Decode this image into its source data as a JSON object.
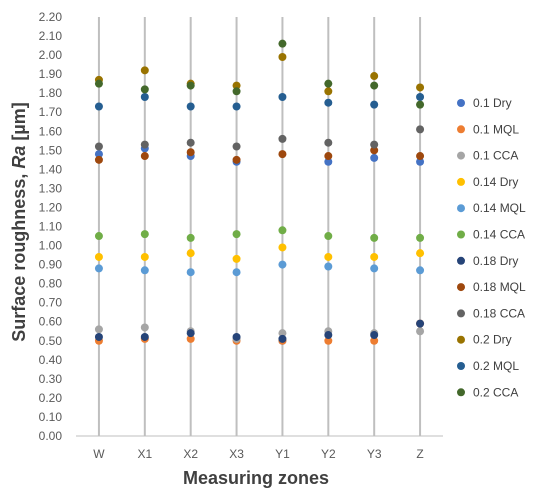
{
  "chart_data": {
    "type": "scatter",
    "title": "",
    "xlabel": "Measuring zones",
    "ylabel_main": "Surface roughness, ",
    "ylabel_italic": "Ra",
    "ylabel_unit": " [µm]",
    "categories": [
      "W",
      "X1",
      "X2",
      "X3",
      "Y1",
      "Y2",
      "Y3",
      "Z"
    ],
    "ylim": [
      0,
      2.2
    ],
    "ytick_step": 0.1,
    "yticks": [
      "0.00",
      "0.10",
      "0.20",
      "0.30",
      "0.40",
      "0.50",
      "0.60",
      "0.70",
      "0.80",
      "0.90",
      "1.00",
      "1.10",
      "1.20",
      "1.30",
      "1.40",
      "1.50",
      "1.60",
      "1.70",
      "1.80",
      "1.90",
      "2.00",
      "2.10",
      "2.20"
    ],
    "grid": "vertical",
    "legend_position": "right",
    "series": [
      {
        "name": "0.1 Dry",
        "color": "#4472C4",
        "values": [
          1.48,
          1.51,
          1.47,
          1.44,
          0.5,
          1.44,
          1.46,
          1.44
        ]
      },
      {
        "name": "0.1 MQL",
        "color": "#ED7D31",
        "values": [
          0.5,
          0.51,
          0.51,
          0.5,
          0.5,
          0.5,
          0.5,
          0.59
        ]
      },
      {
        "name": "0.1 CCA",
        "color": "#A5A5A5",
        "values": [
          0.56,
          0.57,
          0.55,
          0.51,
          0.54,
          0.55,
          0.54,
          0.55
        ]
      },
      {
        "name": "0.14 Dry",
        "color": "#FFC000",
        "values": [
          0.94,
          0.94,
          0.96,
          0.93,
          0.99,
          0.94,
          0.94,
          0.96
        ]
      },
      {
        "name": "0.14 MQL",
        "color": "#5B9BD5",
        "values": [
          0.88,
          0.87,
          0.86,
          0.86,
          0.9,
          0.89,
          0.88,
          0.87
        ]
      },
      {
        "name": "0.14 CCA",
        "color": "#70AD47",
        "values": [
          1.05,
          1.06,
          1.04,
          1.06,
          1.08,
          1.05,
          1.04,
          1.04
        ]
      },
      {
        "name": "0.18 Dry",
        "color": "#264478",
        "values": [
          0.52,
          0.52,
          0.54,
          0.52,
          0.51,
          0.53,
          0.53,
          0.59
        ]
      },
      {
        "name": "0.18 MQL",
        "color": "#9E480E",
        "values": [
          1.45,
          1.47,
          1.49,
          1.45,
          1.48,
          1.47,
          1.5,
          1.47
        ]
      },
      {
        "name": "0.18 CCA",
        "color": "#636363",
        "values": [
          1.52,
          1.53,
          1.54,
          1.52,
          1.56,
          1.54,
          1.53,
          1.61
        ]
      },
      {
        "name": "0.2 Dry",
        "color": "#997300",
        "values": [
          1.87,
          1.92,
          1.85,
          1.84,
          1.99,
          1.81,
          1.89,
          1.83
        ]
      },
      {
        "name": "0.2 MQL",
        "color": "#255E91",
        "values": [
          1.73,
          1.78,
          1.73,
          1.73,
          1.78,
          1.75,
          1.74,
          1.78
        ]
      },
      {
        "name": "0.2 CCA",
        "color": "#43682B",
        "values": [
          1.85,
          1.82,
          1.84,
          1.81,
          2.06,
          1.85,
          1.84,
          1.74
        ]
      }
    ]
  }
}
